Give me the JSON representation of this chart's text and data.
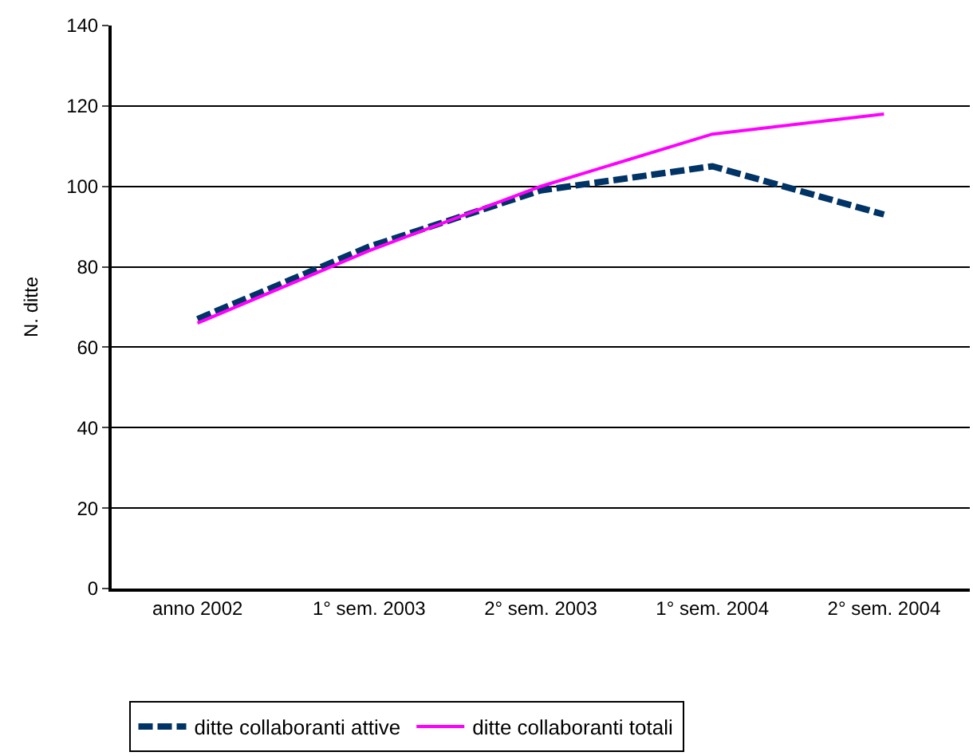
{
  "chart_data": {
    "type": "line",
    "ylabel": "N. ditte",
    "categories": [
      "anno 2002",
      "1° sem. 2003",
      "2° sem. 2003",
      "1° sem. 2004",
      "2° sem. 2004"
    ],
    "ylim": [
      0,
      140
    ],
    "yticks": [
      0,
      20,
      40,
      60,
      80,
      100,
      120,
      140
    ],
    "grid": "y",
    "legend": "bottom",
    "series": [
      {
        "name": "ditte collaboranti attive",
        "color": "#003366",
        "line_style": "dashed",
        "values": [
          67,
          85,
          99,
          105,
          93
        ]
      },
      {
        "name": "ditte collaboranti totali",
        "color": "#ff00ff",
        "line_style": "solid",
        "values": [
          66,
          84,
          100,
          113,
          118
        ]
      }
    ]
  }
}
